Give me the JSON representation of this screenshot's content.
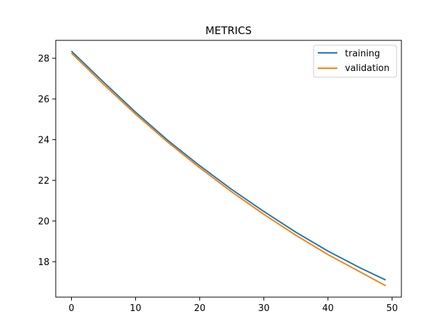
{
  "chart_data": {
    "type": "line",
    "title": "METRICS",
    "xlabel": "",
    "ylabel": "",
    "xlim": [
      -2.45,
      51.45
    ],
    "ylim": [
      16.26,
      28.88
    ],
    "xticks": [
      0,
      10,
      20,
      30,
      40,
      50
    ],
    "yticks": [
      18,
      20,
      22,
      24,
      26,
      28
    ],
    "grid": false,
    "legend_position": "top-right",
    "series": [
      {
        "name": "training",
        "color": "#1f77b4",
        "x": [
          0,
          5,
          10,
          15,
          20,
          25,
          30,
          35,
          40,
          45,
          49
        ],
        "y": [
          28.35,
          26.83,
          25.35,
          23.97,
          22.72,
          21.55,
          20.47,
          19.45,
          18.52,
          17.7,
          17.1
        ]
      },
      {
        "name": "validation",
        "color": "#ff7f0e",
        "x": [
          0,
          5,
          10,
          15,
          20,
          25,
          30,
          35,
          40,
          45,
          49
        ],
        "y": [
          28.25,
          26.72,
          25.25,
          23.88,
          22.62,
          21.43,
          20.33,
          19.3,
          18.35,
          17.5,
          16.82
        ]
      }
    ]
  }
}
